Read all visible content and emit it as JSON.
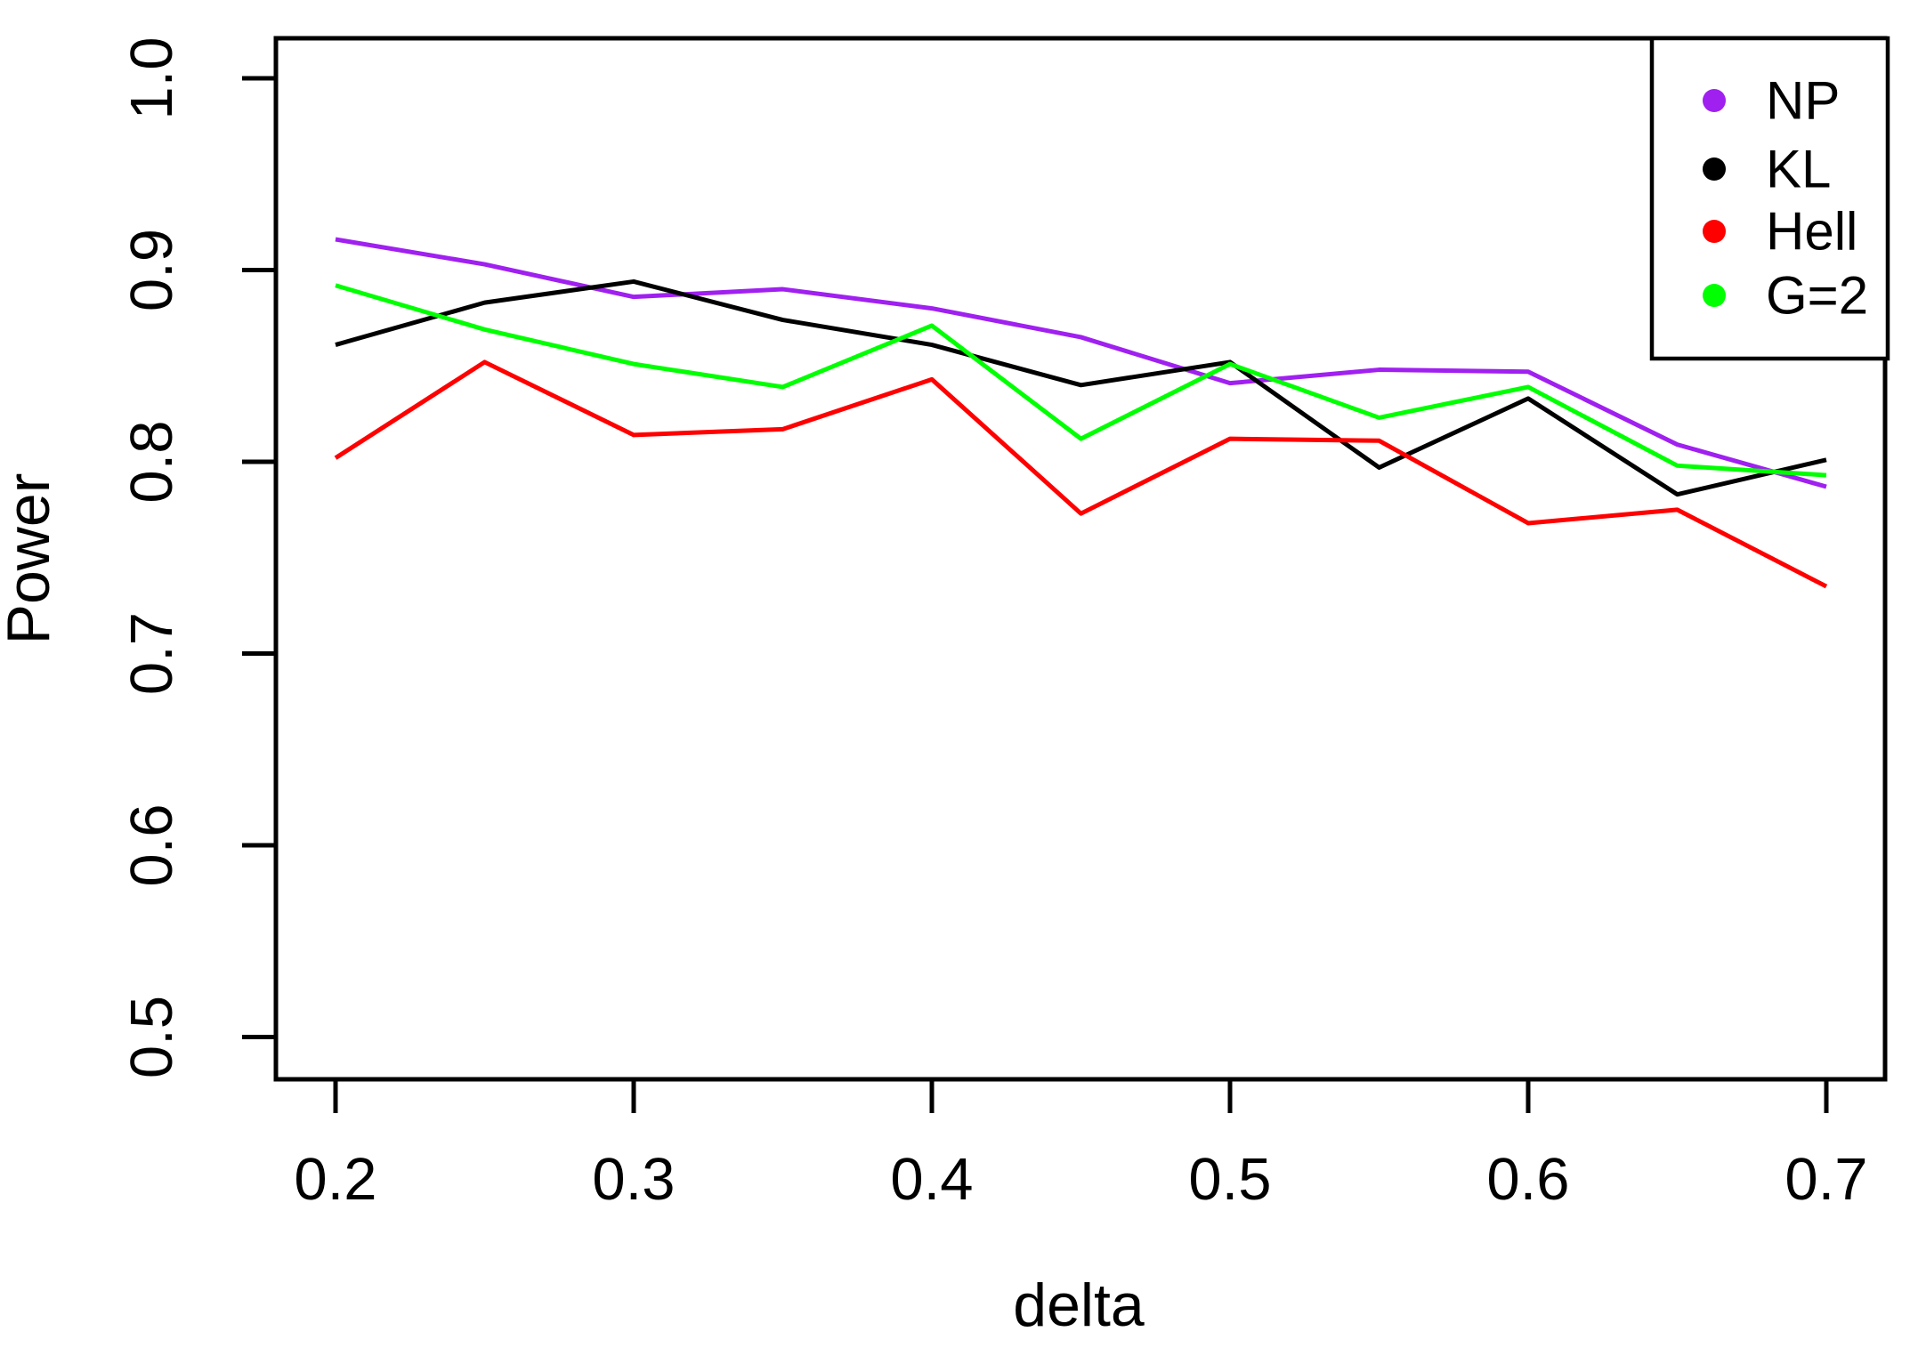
{
  "figure": {
    "background_color": "#ffffff",
    "axis_color": "#000000",
    "text_color": "#000000"
  },
  "chart_data": {
    "type": "line",
    "title": "",
    "xlabel": "delta",
    "ylabel": "Power",
    "x": [
      0.2,
      0.25,
      0.3,
      0.35,
      0.4,
      0.45,
      0.5,
      0.55,
      0.6,
      0.65,
      0.7
    ],
    "series": [
      {
        "name": "NP",
        "color": "#A020F0",
        "marker": "dot",
        "values": [
          0.916,
          0.903,
          0.886,
          0.89,
          0.88,
          0.865,
          0.841,
          0.848,
          0.847,
          0.809,
          0.787
        ]
      },
      {
        "name": "KL",
        "color": "#000000",
        "marker": "dot",
        "values": [
          0.861,
          0.883,
          0.894,
          0.874,
          0.861,
          0.84,
          0.852,
          0.797,
          0.833,
          0.783,
          0.801
        ]
      },
      {
        "name": "Hell",
        "color": "#FF0000",
        "marker": "dot",
        "values": [
          0.802,
          0.852,
          0.814,
          0.817,
          0.843,
          0.773,
          0.812,
          0.811,
          0.768,
          0.775,
          0.735
        ]
      },
      {
        "name": "G=2",
        "color": "#00FF00",
        "marker": "dot",
        "values": [
          0.892,
          0.869,
          0.851,
          0.839,
          0.871,
          0.812,
          0.851,
          0.823,
          0.839,
          0.798,
          0.793
        ]
      }
    ],
    "x_ticks": [
      "0.2",
      "0.3",
      "0.4",
      "0.5",
      "0.6",
      "0.7"
    ],
    "y_ticks": [
      "1.0",
      "0.9",
      "0.8",
      "0.7",
      "0.6",
      "0.5"
    ],
    "xlim": [
      0.18,
      0.72
    ],
    "ylim": [
      0.478,
      1.021
    ],
    "grid": false,
    "legend_position": "top-right"
  }
}
